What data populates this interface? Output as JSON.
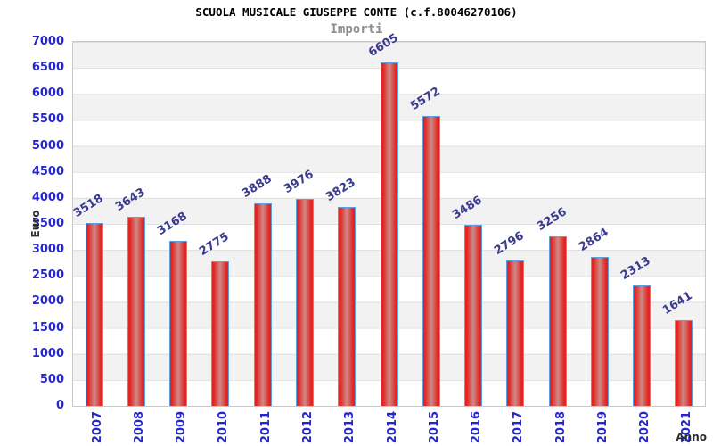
{
  "title": "SCUOLA MUSICALE GIUSEPPE CONTE (c.f.80046270106)",
  "subtitle": "Importi",
  "chart_data": {
    "type": "bar",
    "title": "SCUOLA MUSICALE GIUSEPPE CONTE (c.f.80046270106)",
    "subtitle": "Importi",
    "categories": [
      "2007",
      "2008",
      "2009",
      "2010",
      "2011",
      "2012",
      "2013",
      "2014",
      "2015",
      "2016",
      "2017",
      "2018",
      "2019",
      "2020",
      "2021"
    ],
    "values": [
      3518,
      3643,
      3168,
      2775,
      3888,
      3976,
      3823,
      6605,
      5572,
      3486,
      2796,
      3256,
      2864,
      2313,
      1641
    ],
    "xlabel": "Anno",
    "ylabel": "Euro",
    "ylim": [
      0,
      7000
    ],
    "ytick_step": 500,
    "grid": "horizontal alternating bands",
    "legend": "none",
    "colors": {
      "bar_edge_red": "#e32421",
      "bar_center_highlight": "#cc8a86",
      "bar_border_blue": "#5e9fe0",
      "axis_tick_label_blue": "#2626cf",
      "value_label_navy": "#3b3b8f",
      "band_gray": "#f2f2f2",
      "plot_border_gray": "#c8c8c8",
      "axis_title_dark": "#2e2e2e",
      "subtitle_gray": "#8f8f8f"
    }
  }
}
